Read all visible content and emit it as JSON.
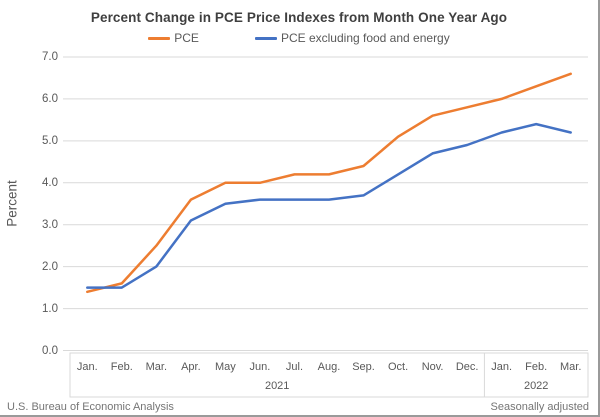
{
  "title": "Percent Change in PCE Price Indexes from Month One Year Ago",
  "legend": [
    {
      "label": "PCE",
      "color": "#ED7D31"
    },
    {
      "label": "PCE excluding food and energy",
      "color": "#4472C4"
    }
  ],
  "chart_data": {
    "type": "line",
    "title": "Percent Change in PCE Price Indexes from Month One Year Ago",
    "ylabel": "Percent",
    "ylim": [
      0.0,
      7.0
    ],
    "ytick_step": 1.0,
    "ytick_labels": [
      "0.0",
      "1.0",
      "2.0",
      "3.0",
      "4.0",
      "5.0",
      "6.0",
      "7.0"
    ],
    "grid": true,
    "legend_position": "top",
    "categories": [
      "Jan.",
      "Feb.",
      "Mar.",
      "Apr.",
      "May",
      "Jun.",
      "Jul.",
      "Aug.",
      "Sep.",
      "Oct.",
      "Nov.",
      "Dec.",
      "Jan.",
      "Feb.",
      "Mar."
    ],
    "year_groups": [
      {
        "label": "2021",
        "months": 12
      },
      {
        "label": "2022",
        "months": 3
      }
    ],
    "series": [
      {
        "name": "PCE",
        "color": "#ED7D31",
        "values": [
          1.4,
          1.6,
          2.5,
          3.6,
          4.0,
          4.0,
          4.2,
          4.2,
          4.4,
          5.1,
          5.6,
          5.8,
          6.0,
          6.3,
          6.6
        ]
      },
      {
        "name": "PCE excluding food and energy",
        "color": "#4472C4",
        "values": [
          1.5,
          1.5,
          2.0,
          3.1,
          3.5,
          3.6,
          3.6,
          3.6,
          3.7,
          4.2,
          4.7,
          4.9,
          5.2,
          5.4,
          5.2
        ]
      }
    ],
    "gridline_color": "#D9D9D9",
    "axis_box_color": "#D9D9D9"
  },
  "footer": {
    "left": "U.S. Bureau of Economic Analysis",
    "right": "Seasonally adjusted"
  }
}
